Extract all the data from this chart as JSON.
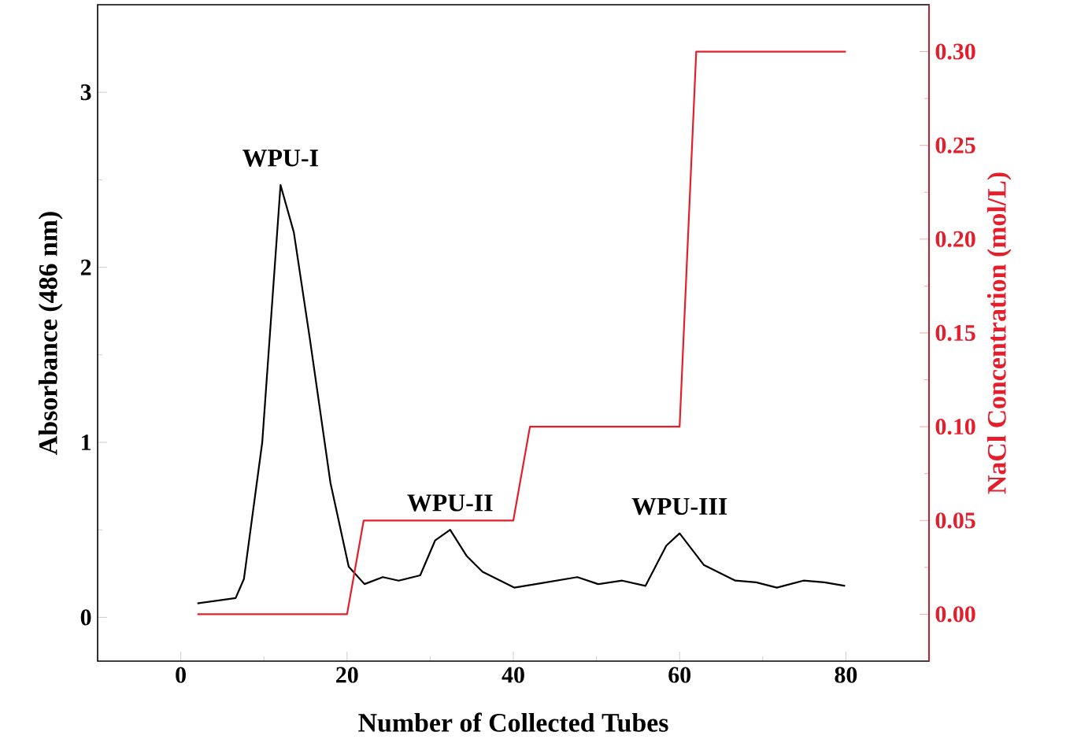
{
  "chart_data": {
    "type": "line",
    "xlabel": "Number of Collected Tubes",
    "ylabel": "Absorbance (486 nm)",
    "y2label": "NaCl Concentration (mol/L)",
    "xlim": [
      -10,
      90
    ],
    "xticks": [
      0,
      20,
      40,
      60,
      80
    ],
    "ylim": [
      -0.25,
      3.5
    ],
    "yticks": [
      0,
      1,
      2,
      3
    ],
    "y2lim": [
      -0.025,
      0.325
    ],
    "y2ticks": [
      {
        "value": 0,
        "label": "0.00"
      },
      {
        "value": 0.05,
        "label": "0.05"
      },
      {
        "value": 0.1,
        "label": "0.10"
      },
      {
        "value": 0.15,
        "label": "0.15"
      },
      {
        "value": 0.2,
        "label": "0.20"
      },
      {
        "value": 0.25,
        "label": "0.25"
      },
      {
        "value": 0.3,
        "label": "0.30"
      }
    ],
    "marker": "none",
    "series": [
      {
        "color": "#000000",
        "x": [
          2,
          6.6,
          7.6,
          9.8,
          12.0,
          13.6,
          15.5,
          18.0,
          20.2,
          22.1,
          24.3,
          26.2,
          28.8,
          30.6,
          32.4,
          34.4,
          36.3,
          40.1,
          42.7,
          47.7,
          50.2,
          53.1,
          55.9,
          58.4,
          60.0,
          62.9,
          66.7,
          69.2,
          71.7,
          74.9,
          77.4,
          79.9
        ],
        "values": [
          0.08,
          0.11,
          0.22,
          1.0,
          2.47,
          2.2,
          1.6,
          0.77,
          0.29,
          0.19,
          0.23,
          0.21,
          0.24,
          0.44,
          0.5,
          0.35,
          0.26,
          0.17,
          0.19,
          0.23,
          0.19,
          0.21,
          0.18,
          0.41,
          0.48,
          0.3,
          0.21,
          0.2,
          0.17,
          0.21,
          0.2,
          0.18
        ]
      },
      {
        "color": "#e41e2b",
        "axis": "y2",
        "x": [
          2,
          20,
          22,
          40,
          42,
          60,
          62,
          80
        ],
        "values": [
          0,
          0,
          0.05,
          0.05,
          0.1,
          0.1,
          0.3,
          0.3
        ]
      }
    ],
    "annotations": [
      {
        "text": "WPU-I",
        "x": 12,
        "y": 2.47
      },
      {
        "text": "WPU-II",
        "x": 32.4,
        "y": 0.5
      },
      {
        "text": "WPU-III",
        "x": 60,
        "y": 0.48
      }
    ]
  }
}
